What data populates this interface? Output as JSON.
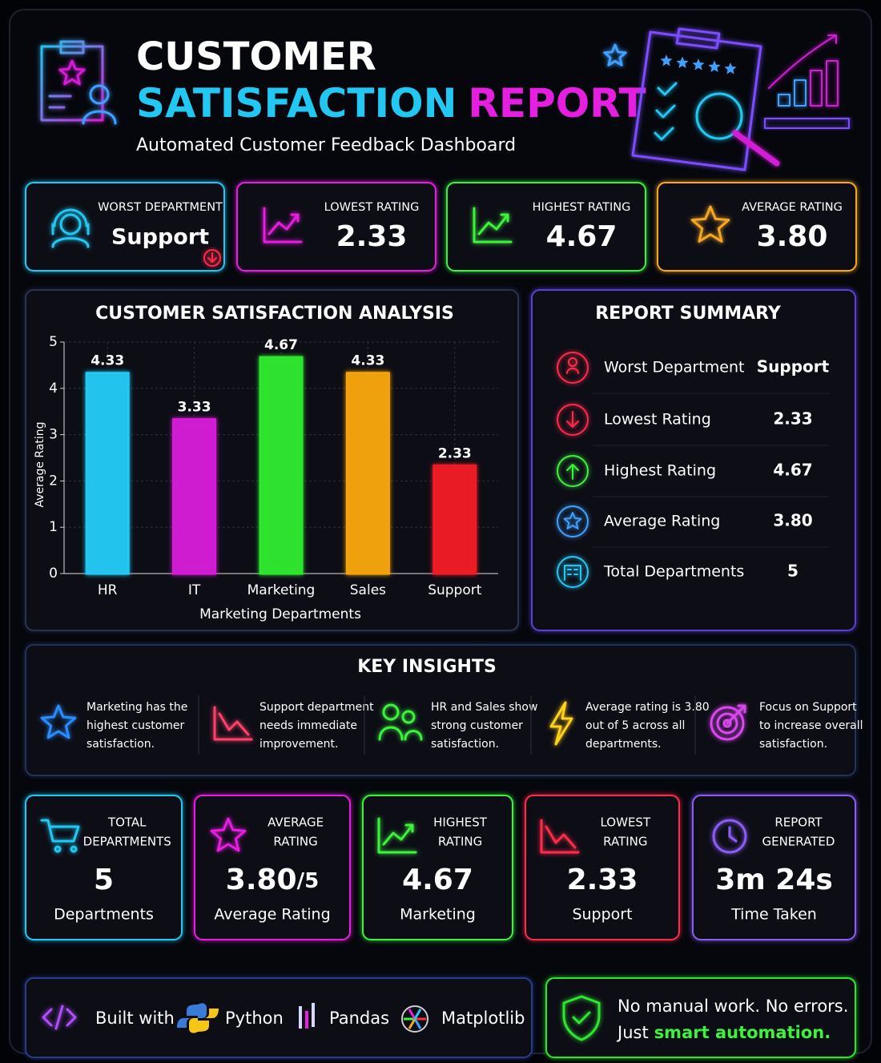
{
  "header": {
    "title_line1": "CUSTOMER",
    "title_word2": "SATISFACTION",
    "title_word3": "REPORT",
    "subtitle": "Automated Customer Feedback Dashboard"
  },
  "kpis": [
    {
      "label": "WORST DEPARTMENT",
      "value": "Support"
    },
    {
      "label": "LOWEST RATING",
      "value": "2.33"
    },
    {
      "label": "HIGHEST RATING",
      "value": "4.67"
    },
    {
      "label": "AVERAGE RATING",
      "value": "3.80"
    }
  ],
  "chart_data": {
    "type": "bar",
    "title": "CUSTOMER SATISFACTION ANALYSIS",
    "x_label": "Marketing Departments",
    "y_label": "Average Rating",
    "categories": [
      "HR",
      "IT",
      "Marketing",
      "Sales",
      "Support"
    ],
    "values": [
      4.33,
      3.33,
      4.67,
      4.33,
      2.33
    ],
    "colors": [
      "#22c7f2",
      "#d41fd6",
      "#2ee62e",
      "#f5a30f",
      "#ee1c24"
    ],
    "ylim": [
      0,
      5
    ],
    "yticks": [
      0,
      1,
      2,
      3,
      4,
      5
    ],
    "grid": true
  },
  "summary": {
    "title": "REPORT SUMMARY",
    "rows": [
      {
        "label": "Worst Department",
        "value": "Support"
      },
      {
        "label": "Lowest Rating",
        "value": "2.33"
      },
      {
        "label": "Highest Rating",
        "value": "4.67"
      },
      {
        "label": "Average Rating",
        "value": "3.80"
      },
      {
        "label": "Total Departments",
        "value": "5"
      }
    ]
  },
  "insights": {
    "title": "KEY INSIGHTS",
    "items": [
      {
        "lines": [
          "Marketing has the",
          "highest customer",
          "satisfaction."
        ]
      },
      {
        "lines": [
          "Support department",
          "needs immediate",
          "improvement."
        ]
      },
      {
        "lines": [
          "HR and Sales show",
          "strong customer",
          "satisfaction."
        ]
      },
      {
        "lines": [
          "Average rating is 3.80",
          "out of 5 across all",
          "departments."
        ]
      },
      {
        "lines": [
          "Focus on Support",
          "to increase overall",
          "satisfaction."
        ]
      }
    ]
  },
  "stats": [
    {
      "label": [
        "TOTAL",
        "DEPARTMENTS"
      ],
      "value": "5",
      "sub": "Departments"
    },
    {
      "label": [
        "AVERAGE",
        "RATING"
      ],
      "value": "3.80",
      "suffix": "/5",
      "sub": "Average Rating"
    },
    {
      "label": [
        "HIGHEST",
        "RATING"
      ],
      "value": "4.67",
      "sub": "Marketing"
    },
    {
      "label": [
        "LOWEST",
        "RATING"
      ],
      "value": "2.33",
      "sub": "Support"
    },
    {
      "label": [
        "REPORT",
        "GENERATED"
      ],
      "value": "3m 24s",
      "sub": "Time Taken"
    }
  ],
  "footer": {
    "built_with": "Built with",
    "tools": [
      "Python",
      "Pandas",
      "Matplotlib"
    ],
    "message_line1": "No manual work. No errors.",
    "message_line2": "Just",
    "message_highlight": "smart automation."
  }
}
